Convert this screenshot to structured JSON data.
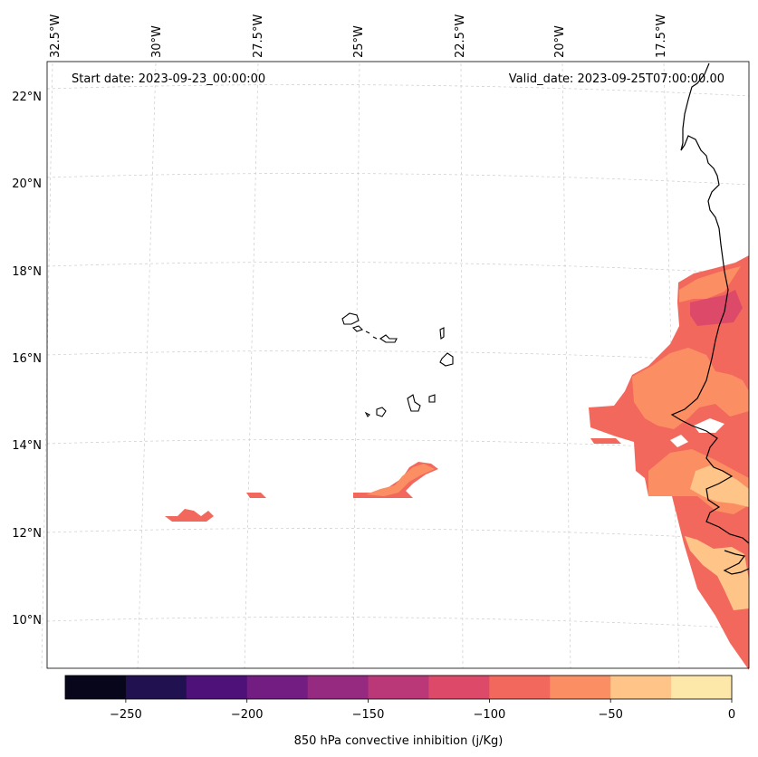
{
  "header": {
    "start_date": "Start date: 2023-09-23_00:00:00",
    "valid_date": "Valid_date: 2023-09-25T07:00:00.00"
  },
  "axes": {
    "lon_ticks": [
      "32.5°W",
      "30°W",
      "27.5°W",
      "25°W",
      "22.5°W",
      "20°W",
      "17.5°W"
    ],
    "lat_ticks": [
      "22°N",
      "20°N",
      "18°N",
      "16°N",
      "14°N",
      "12°N",
      "10°N"
    ]
  },
  "colorbar": {
    "label": "850 hPa convective inhibition (j/Kg)",
    "tick_labels": [
      "−250",
      "−200",
      "−150",
      "−100",
      "−50",
      "0"
    ],
    "colors": [
      "#07061a",
      "#221150",
      "#4e1079",
      "#731c81",
      "#952a80",
      "#bb3878",
      "#dd4a69",
      "#f3685c",
      "#fb8f63",
      "#fec488",
      "#fde7a9"
    ]
  },
  "colors": {
    "cin_-100_-75": "#f3685c",
    "cin_-75_-50": "#fb8f63",
    "cin_-50_-25": "#fec488",
    "cin_-125_-100": "#dd4a69",
    "gridline": "#cccccc",
    "coastline": "#000000"
  }
}
